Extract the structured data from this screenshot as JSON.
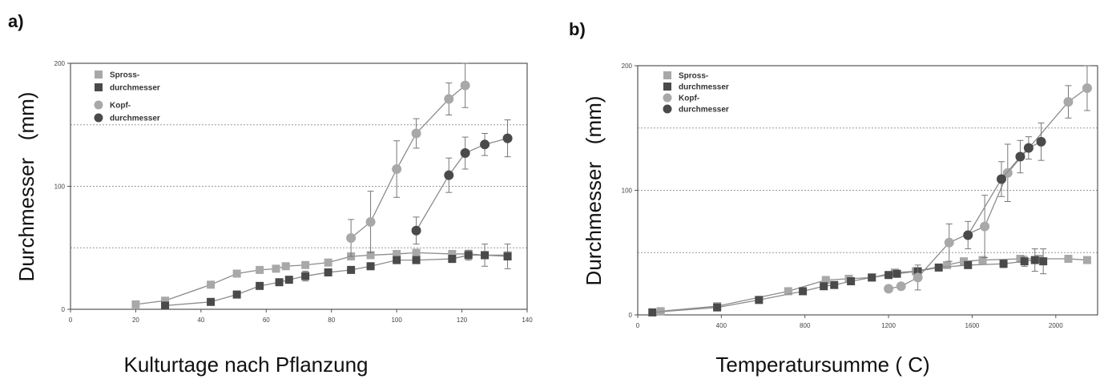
{
  "colors": {
    "spross": "#a8a8a8",
    "kopf": "#4a4a4a",
    "line": "#8c8c8c",
    "axis": "#555555",
    "grid": "#9a9a9a"
  },
  "chart_data": [
    {
      "panel_label": "a)",
      "type": "line",
      "xlabel": "Kulturtage nach Pflanzung",
      "ylabel": "Durchmesser   (mm)",
      "xlim": [
        0,
        140
      ],
      "ylim": [
        0,
        200
      ],
      "xticks": [
        0,
        20,
        40,
        60,
        80,
        100,
        120,
        140
      ],
      "xtick_labels": [
        "0",
        "20",
        "40",
        "60",
        "80",
        "100",
        "120",
        "140"
      ],
      "yticks": [
        0,
        100,
        200
      ],
      "ytick_labels": [
        "0",
        "100",
        "200"
      ],
      "grid_y": [
        50,
        100,
        150
      ],
      "legend": {
        "position": "top-left",
        "group1": [
          "Spross-",
          "durchmesser"
        ],
        "group2": [
          "Kopf-",
          "durchmesser"
        ]
      },
      "series": [
        {
          "name": "Spross 1",
          "marker": "square",
          "color": "#a8a8a8",
          "x": [
            20,
            29,
            43,
            51,
            58,
            63,
            66,
            72,
            79,
            86,
            92,
            100,
            106,
            117,
            122,
            127,
            134
          ],
          "y": [
            4,
            7,
            20,
            29,
            32,
            33,
            35,
            36,
            38,
            43,
            44,
            45,
            46,
            45,
            45,
            44,
            44
          ],
          "err": [
            0,
            0,
            0,
            0,
            0,
            0,
            0,
            0,
            0,
            0,
            0,
            0,
            0,
            0,
            0,
            0,
            0
          ]
        },
        {
          "name": "Spross 2",
          "marker": "square",
          "color": "#4a4a4a",
          "x": [
            29,
            43,
            51,
            58,
            64,
            67,
            72,
            79,
            86,
            92,
            100,
            106,
            117,
            122,
            127,
            134
          ],
          "y": [
            3,
            6,
            12,
            19,
            22,
            24,
            27,
            30,
            32,
            35,
            40,
            40,
            41,
            44,
            44,
            43
          ],
          "err": [
            0,
            0,
            0,
            0,
            0,
            0,
            4,
            0,
            0,
            0,
            0,
            0,
            3,
            4,
            9,
            10
          ]
        },
        {
          "name": "Kopf 1",
          "marker": "circle",
          "color": "#a8a8a8",
          "x": [
            86,
            92,
            100,
            106,
            116,
            121
          ],
          "y": [
            58,
            71,
            114,
            143,
            171,
            182
          ],
          "err": [
            15,
            25,
            23,
            12,
            13,
            18
          ]
        },
        {
          "name": "Kopf 2",
          "marker": "circle",
          "color": "#4a4a4a",
          "x": [
            106,
            116,
            121,
            127,
            134
          ],
          "y": [
            64,
            109,
            127,
            134,
            139
          ],
          "err": [
            11,
            14,
            13,
            9,
            15
          ]
        }
      ]
    },
    {
      "panel_label": "b)",
      "type": "line",
      "xlabel": "Temperatursumme ( C)",
      "ylabel": "Durchmesser   (mm)",
      "xlim": [
        0,
        2200
      ],
      "ylim": [
        0,
        200
      ],
      "xticks": [
        0,
        400,
        800,
        1200,
        1600,
        2000
      ],
      "xtick_labels": [
        "0",
        "400",
        "800",
        "1200",
        "1600",
        "2000"
      ],
      "yticks": [
        0,
        100,
        200
      ],
      "ytick_labels": [
        "0",
        "100",
        "200"
      ],
      "grid_y": [
        50,
        100,
        150
      ],
      "legend": {
        "position": "top-left",
        "group1": [
          "Spross-",
          "durchmesser"
        ],
        "group2": [
          "Kopf-",
          "durchmesser"
        ]
      },
      "series": [
        {
          "name": "Spross 1",
          "marker": "square",
          "color": "#a8a8a8",
          "x": [
            110,
            380,
            720,
            900,
            1010,
            1120,
            1230,
            1330,
            1480,
            1560,
            1650,
            1830,
            1920,
            2060,
            2150
          ],
          "y": [
            3,
            7,
            19,
            28,
            29,
            30,
            34,
            35,
            40,
            43,
            44,
            45,
            45,
            45,
            44
          ],
          "err": [
            0,
            0,
            0,
            0,
            0,
            0,
            0,
            0,
            0,
            0,
            0,
            0,
            0,
            0,
            0
          ]
        },
        {
          "name": "Spross 2",
          "marker": "square",
          "color": "#4a4a4a",
          "x": [
            70,
            380,
            580,
            790,
            890,
            940,
            1020,
            1120,
            1200,
            1240,
            1340,
            1440,
            1580,
            1750,
            1850,
            1900,
            1940
          ],
          "y": [
            2,
            6,
            12,
            19,
            23,
            24,
            27,
            30,
            32,
            33,
            35,
            38,
            40,
            41,
            43,
            44,
            43
          ],
          "err": [
            0,
            0,
            0,
            0,
            0,
            0,
            0,
            0,
            0,
            0,
            0,
            0,
            0,
            3,
            4,
            9,
            10
          ]
        },
        {
          "name": "Kopf 1",
          "marker": "circle",
          "color": "#a8a8a8",
          "x": [
            1200,
            1260,
            1340,
            1490,
            1660,
            1770,
            2060,
            2150
          ],
          "y": [
            21,
            23,
            30,
            58,
            71,
            114,
            171,
            182
          ],
          "err": [
            0,
            0,
            10,
            15,
            25,
            23,
            13,
            18
          ]
        },
        {
          "name": "Kopf 2",
          "marker": "circle",
          "color": "#4a4a4a",
          "x": [
            1580,
            1740,
            1830,
            1870,
            1930
          ],
          "y": [
            64,
            109,
            127,
            134,
            139
          ],
          "err": [
            11,
            14,
            13,
            9,
            15
          ]
        }
      ]
    }
  ]
}
